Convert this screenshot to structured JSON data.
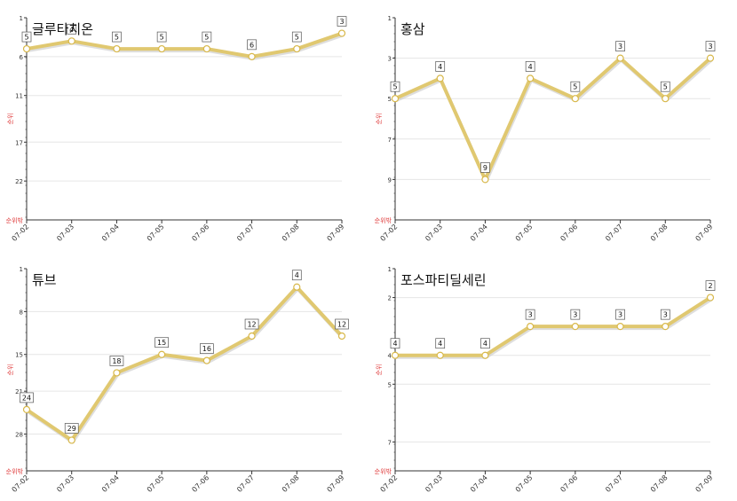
{
  "colors": {
    "line": "#e0c870",
    "line_shadow": "#c8c8c8",
    "marker_fill": "#ffffff",
    "marker_stroke": "#d8b84a",
    "axis": "#333333",
    "grid": "#e6e6e6",
    "ylabel": "#e04040"
  },
  "chart_data": [
    {
      "type": "line",
      "title": "글루타치온",
      "ylabel": "순위",
      "ymax_label": "순위밖",
      "y_inverted": true,
      "yticks": [
        1,
        6,
        11,
        17,
        22
      ],
      "ylim": [
        1,
        27
      ],
      "categories": [
        "07-02",
        "07-03",
        "07-04",
        "07-05",
        "07-06",
        "07-07",
        "07-08",
        "07-09"
      ],
      "values": [
        5,
        4,
        5,
        5,
        5,
        6,
        5,
        3
      ],
      "labels": [
        "5",
        "4",
        "5",
        "5",
        "5",
        "6",
        "5",
        "3"
      ],
      "grid": true
    },
    {
      "type": "line",
      "title": "홍삼",
      "ylabel": "순위",
      "ymax_label": "순위밖",
      "y_inverted": true,
      "yticks": [
        1,
        3,
        5,
        7,
        9
      ],
      "ylim": [
        1,
        11
      ],
      "categories": [
        "07-02",
        "07-03",
        "07-04",
        "07-05",
        "07-06",
        "07-07",
        "07-08",
        "07-09"
      ],
      "values": [
        5,
        4,
        9,
        4,
        5,
        3,
        5,
        3
      ],
      "labels": [
        "5",
        "4",
        "9",
        "4",
        "5",
        "3",
        "5",
        "3"
      ],
      "grid": true
    },
    {
      "type": "line",
      "title": "튜브",
      "ylabel": "순위",
      "ymax_label": "순위밖",
      "y_inverted": true,
      "yticks": [
        1,
        8,
        15,
        21,
        28
      ],
      "ylim": [
        1,
        34
      ],
      "categories": [
        "07-02",
        "07-03",
        "07-04",
        "07-05",
        "07-06",
        "07-07",
        "07-08",
        "07-09"
      ],
      "values": [
        24,
        29,
        18,
        15,
        16,
        12,
        4,
        12
      ],
      "labels": [
        "24",
        "29",
        "18",
        "15",
        "16",
        "12",
        "4",
        "12"
      ],
      "grid": true
    },
    {
      "type": "line",
      "title": "포스파티딜세린",
      "ylabel": "순위",
      "ymax_label": "순위밖",
      "y_inverted": true,
      "yticks": [
        1,
        2,
        4,
        5,
        7
      ],
      "ylim": [
        1,
        8
      ],
      "categories": [
        "07-02",
        "07-03",
        "07-04",
        "07-05",
        "07-06",
        "07-07",
        "07-08",
        "07-09"
      ],
      "values": [
        4,
        4,
        4,
        3,
        3,
        3,
        3,
        2
      ],
      "labels": [
        "4",
        "4",
        "4",
        "3",
        "3",
        "3",
        "3",
        "2"
      ],
      "grid": true
    }
  ]
}
